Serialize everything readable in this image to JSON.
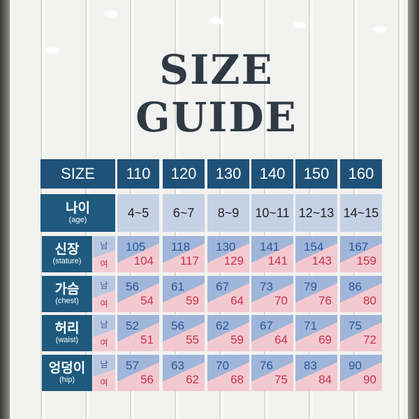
{
  "title": "SIZE GUIDE",
  "table": {
    "size_label": "SIZE",
    "sizes": [
      "110",
      "120",
      "130",
      "140",
      "150",
      "160"
    ],
    "age_label": "나이",
    "age_sub": "(age)",
    "ages": [
      "4~5",
      "6~7",
      "8~9",
      "10~11",
      "12~13",
      "14~15"
    ],
    "male_label": "남",
    "female_label": "여",
    "rows": [
      {
        "label": "신장",
        "sub": "(stature)",
        "male": [
          "105",
          "118",
          "130",
          "141",
          "154",
          "167"
        ],
        "female": [
          "104",
          "117",
          "129",
          "141",
          "143",
          "159"
        ]
      },
      {
        "label": "가슴",
        "sub": "(chest)",
        "male": [
          "56",
          "61",
          "67",
          "73",
          "79",
          "86"
        ],
        "female": [
          "54",
          "59",
          "64",
          "70",
          "76",
          "80"
        ]
      },
      {
        "label": "허리",
        "sub": "(waist)",
        "male": [
          "52",
          "56",
          "62",
          "67",
          "71",
          "75"
        ],
        "female": [
          "51",
          "55",
          "59",
          "64",
          "69",
          "72"
        ]
      },
      {
        "label": "엉덩이",
        "sub": "(hip)",
        "male": [
          "57",
          "63",
          "70",
          "76",
          "83",
          "90"
        ],
        "female": [
          "56",
          "62",
          "68",
          "75",
          "84",
          "90"
        ]
      }
    ]
  },
  "colors": {
    "header": "#1f5177",
    "male": "#2d5596",
    "female": "#c8324a"
  }
}
